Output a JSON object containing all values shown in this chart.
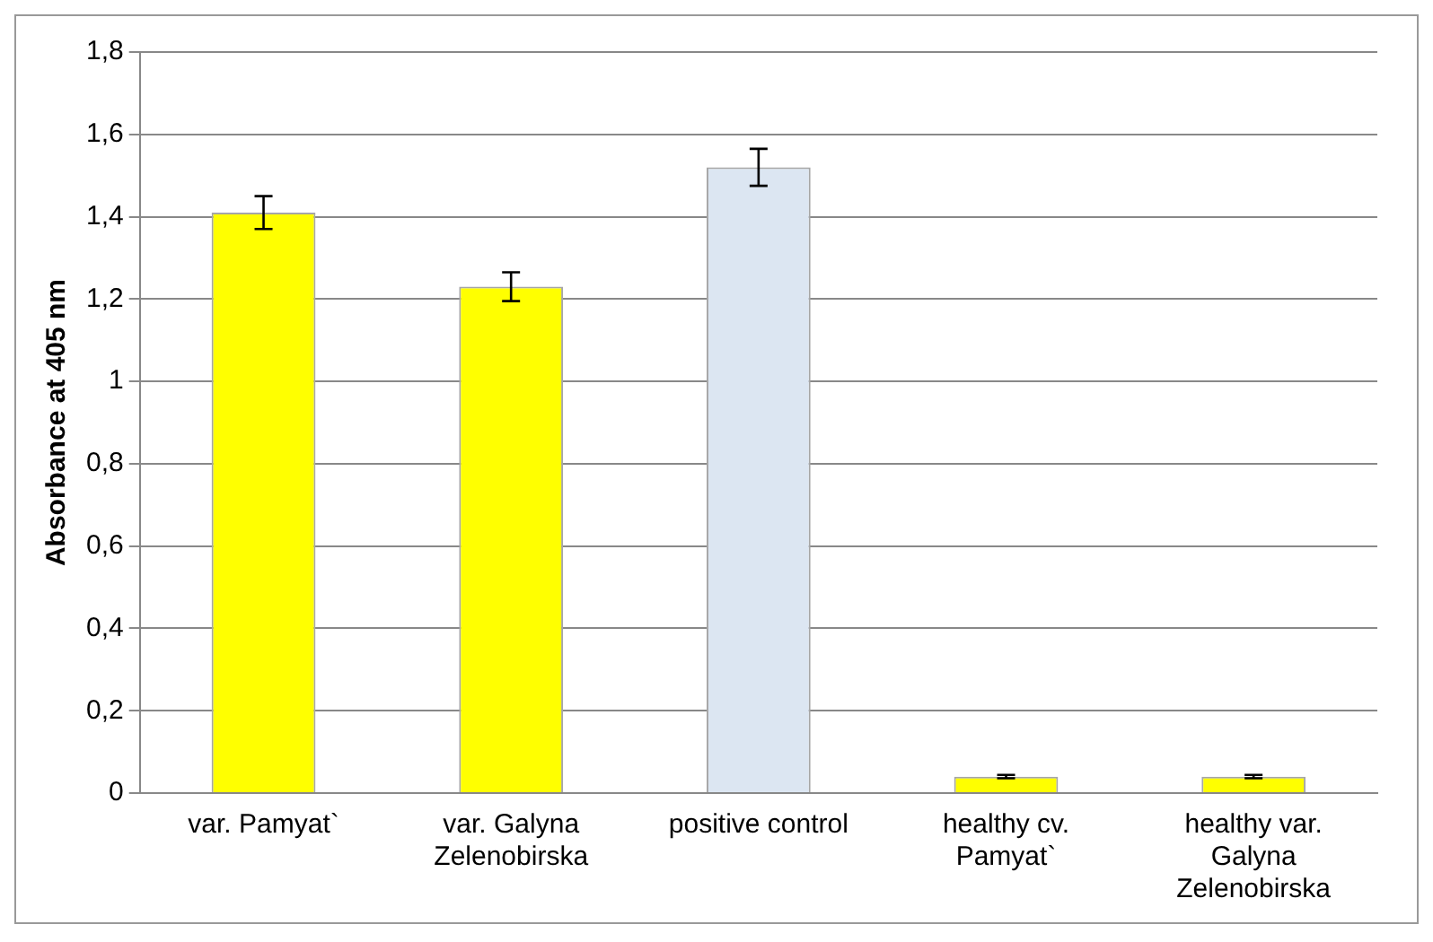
{
  "chart_data": {
    "type": "bar",
    "ylabel": "Absorbance at 405 nm",
    "categories": [
      "var. Pamyat`",
      "var. Galyna Zelenobirska",
      "positive control",
      "healthy cv. Pamyat`",
      "healthy var. Galyna Zelenobirska"
    ],
    "values": [
      1.41,
      1.23,
      1.52,
      0.04,
      0.04
    ],
    "errors": [
      0.04,
      0.035,
      0.045,
      0.004,
      0.004
    ],
    "colors": [
      "#ffff00",
      "#ffff00",
      "#dce6f2",
      "#ffff00",
      "#ffff00"
    ],
    "ylim": [
      0,
      1.8
    ],
    "yticks": [
      0,
      {
        "value": 0.2,
        "label": "0,2"
      },
      {
        "value": 0.4,
        "label": "0,4"
      },
      {
        "value": 0.6,
        "label": "0,6"
      },
      {
        "value": 0.8,
        "label": "0,8"
      },
      1,
      {
        "value": 1.2,
        "label": "1,2"
      },
      {
        "value": 1.4,
        "label": "1,4"
      },
      {
        "value": 1.6,
        "label": "1,6"
      },
      {
        "value": 1.8,
        "label": "1,8"
      }
    ],
    "grid": "y",
    "legend": false
  }
}
